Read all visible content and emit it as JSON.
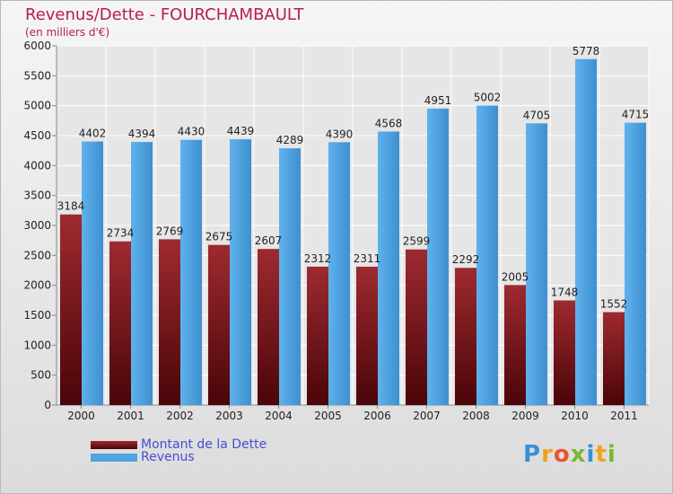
{
  "header": {
    "title": "Revenus/Dette - FOURCHAMBAULT",
    "subtitle": "(en milliers d'€)"
  },
  "chart_data": {
    "type": "bar",
    "categories": [
      "2000",
      "2001",
      "2002",
      "2003",
      "2004",
      "2005",
      "2006",
      "2007",
      "2008",
      "2009",
      "2010",
      "2011"
    ],
    "series": [
      {
        "name": "Montant de la Dette",
        "color": "#7b1b1f",
        "values": [
          3184,
          2734,
          2769,
          2675,
          2607,
          2312,
          2311,
          2599,
          2292,
          2005,
          1748,
          1552
        ],
        "labels": [
          "3184",
          "2734",
          "2769",
          "2675",
          "2607",
          "2312",
          "2311",
          "2599",
          "2292",
          "2005",
          "1748",
          "1552"
        ]
      },
      {
        "name": "Revenus",
        "color": "#4fa3e0",
        "values": [
          4402,
          4394,
          4430,
          4439,
          4289,
          4390,
          4568,
          4951,
          5002,
          4705,
          5778,
          4715
        ],
        "labels": [
          "4402",
          "4394",
          "4430",
          "4439",
          "4289",
          "4390",
          "4568",
          "4951",
          "5002",
          "4705",
          "5778",
          "4715"
        ]
      }
    ],
    "ylim": [
      0,
      6000
    ],
    "yticks": [
      0,
      500,
      1000,
      1500,
      2000,
      2500,
      3000,
      3500,
      4000,
      4500,
      5000,
      5500,
      6000
    ],
    "grid": true,
    "legend_position": "bottom-left"
  },
  "legend": {
    "items": [
      {
        "label": "Montant de la Dette",
        "color": "#7b1b1f"
      },
      {
        "label": "Revenus",
        "color": "#4fa3e0"
      }
    ]
  },
  "logo": {
    "letters": [
      {
        "ch": "P",
        "color": "#3a8fd6"
      },
      {
        "ch": "r",
        "color": "#f0a21c"
      },
      {
        "ch": "o",
        "color": "#e8552a"
      },
      {
        "ch": "x",
        "color": "#7ab82e"
      },
      {
        "ch": "i",
        "color": "#3a8fd6"
      },
      {
        "ch": "t",
        "color": "#f0a21c"
      },
      {
        "ch": "i",
        "color": "#7ab82e"
      }
    ]
  }
}
